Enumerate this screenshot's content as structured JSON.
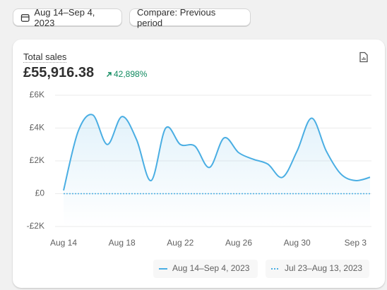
{
  "toolbar": {
    "date_range": "Aug 14–Sep 4, 2023",
    "compare": "Compare: Previous period"
  },
  "card": {
    "metric": "Total sales",
    "total": "£55,916.38",
    "change": "42,898%"
  },
  "chart_data": {
    "type": "line",
    "categories": [
      "Aug 14",
      null,
      null,
      null,
      "Aug 18",
      null,
      null,
      null,
      "Aug 22",
      null,
      null,
      null,
      "Aug 26",
      null,
      null,
      null,
      "Aug 30",
      null,
      null,
      null,
      "Sep 3",
      null
    ],
    "series": [
      {
        "name": "Aug 14–Sep 4, 2023",
        "color": "#4aaee3",
        "dashed": false,
        "values": [
          200,
          3800,
          4800,
          3000,
          4700,
          3300,
          800,
          4000,
          3000,
          2900,
          1600,
          3400,
          2500,
          2100,
          1800,
          1000,
          2600,
          4600,
          2600,
          1200,
          800,
          1000
        ]
      },
      {
        "name": "Jul 23–Aug 13, 2023",
        "color": "#4aaee3",
        "dashed": true,
        "values": [
          0,
          0,
          0,
          0,
          0,
          0,
          0,
          0,
          0,
          0,
          0,
          0,
          0,
          0,
          0,
          0,
          0,
          0,
          0,
          0,
          0,
          0
        ]
      }
    ],
    "ylim": [
      -2000,
      6000
    ],
    "yticks": [
      {
        "value": -2000,
        "label": "-£2K"
      },
      {
        "value": 0,
        "label": "£0"
      },
      {
        "value": 2000,
        "label": "£2K"
      },
      {
        "value": 4000,
        "label": "£4K"
      },
      {
        "value": 6000,
        "label": "£6K"
      }
    ],
    "grid": true
  }
}
